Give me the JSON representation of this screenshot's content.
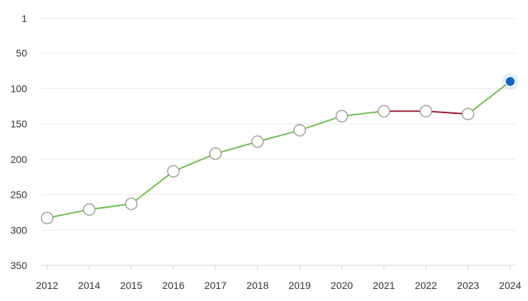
{
  "chart_data": {
    "type": "line",
    "title": "",
    "xlabel": "",
    "ylabel": "",
    "y_reversed": true,
    "ylim": [
      1,
      350
    ],
    "yticks": [
      1,
      50,
      100,
      150,
      200,
      250,
      300,
      350
    ],
    "categories": [
      "2012",
      "2014",
      "2015",
      "2016",
      "2017",
      "2018",
      "2019",
      "2020",
      "2021",
      "2022",
      "2023",
      "2024"
    ],
    "values": [
      283,
      271,
      263,
      217,
      192,
      175,
      159,
      139,
      132,
      132,
      136,
      90
    ],
    "segment_colors": [
      "#6cc04a",
      "#6cc04a",
      "#6cc04a",
      "#6cc04a",
      "#6cc04a",
      "#6cc04a",
      "#6cc04a",
      "#6cc04a",
      "#9b1b30",
      "#9b1b30",
      "#6cc04a"
    ],
    "highlight_index": 11,
    "highlight_color": "#1565c0",
    "grid": true,
    "legend": "none"
  }
}
